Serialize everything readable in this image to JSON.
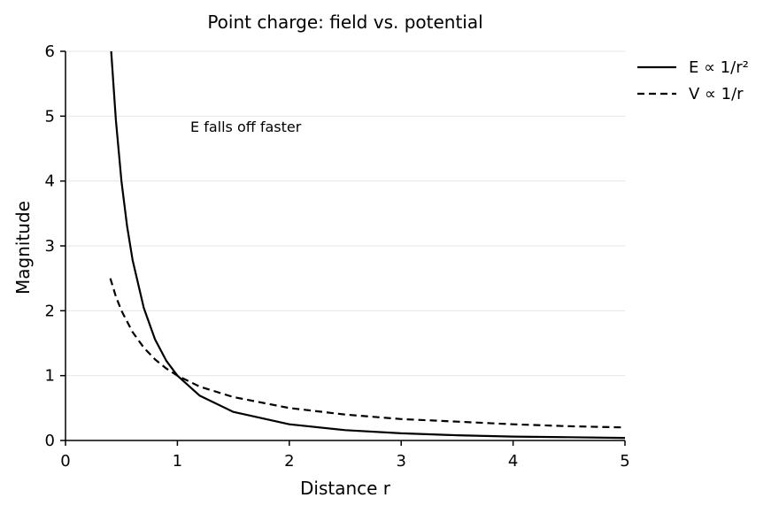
{
  "chart_data": {
    "type": "line",
    "title": "Point charge: field vs. potential",
    "xlabel": "Distance r",
    "ylabel": "Magnitude",
    "xlim": [
      0,
      5
    ],
    "ylim": [
      0,
      6
    ],
    "xticks": [
      "0",
      "1",
      "2",
      "3",
      "4",
      "5"
    ],
    "yticks": [
      "0",
      "1",
      "2",
      "3",
      "4",
      "5",
      "6"
    ],
    "grid": "horizontal",
    "legend_position": "outside-top-right",
    "annotation": "E falls off faster",
    "series": [
      {
        "name": "E ∝ 1/r²",
        "style": "solid",
        "color": "#000000",
        "x": [
          0.408,
          0.45,
          0.5,
          0.55,
          0.6,
          0.7,
          0.8,
          0.9,
          1.0,
          1.2,
          1.5,
          2.0,
          2.5,
          3.0,
          3.5,
          4.0,
          4.5,
          5.0
        ],
        "y": [
          6.0,
          4.94,
          4.0,
          3.31,
          2.78,
          2.04,
          1.56,
          1.23,
          1.0,
          0.69,
          0.44,
          0.25,
          0.16,
          0.11,
          0.08,
          0.06,
          0.05,
          0.04
        ]
      },
      {
        "name": "V ∝ 1/r",
        "style": "dashed",
        "color": "#000000",
        "x": [
          0.4,
          0.45,
          0.5,
          0.6,
          0.7,
          0.8,
          0.9,
          1.0,
          1.2,
          1.5,
          2.0,
          2.5,
          3.0,
          3.5,
          4.0,
          4.5,
          5.0
        ],
        "y": [
          2.5,
          2.22,
          2.0,
          1.67,
          1.43,
          1.25,
          1.11,
          1.0,
          0.83,
          0.67,
          0.5,
          0.4,
          0.33,
          0.29,
          0.25,
          0.22,
          0.2
        ]
      }
    ]
  }
}
